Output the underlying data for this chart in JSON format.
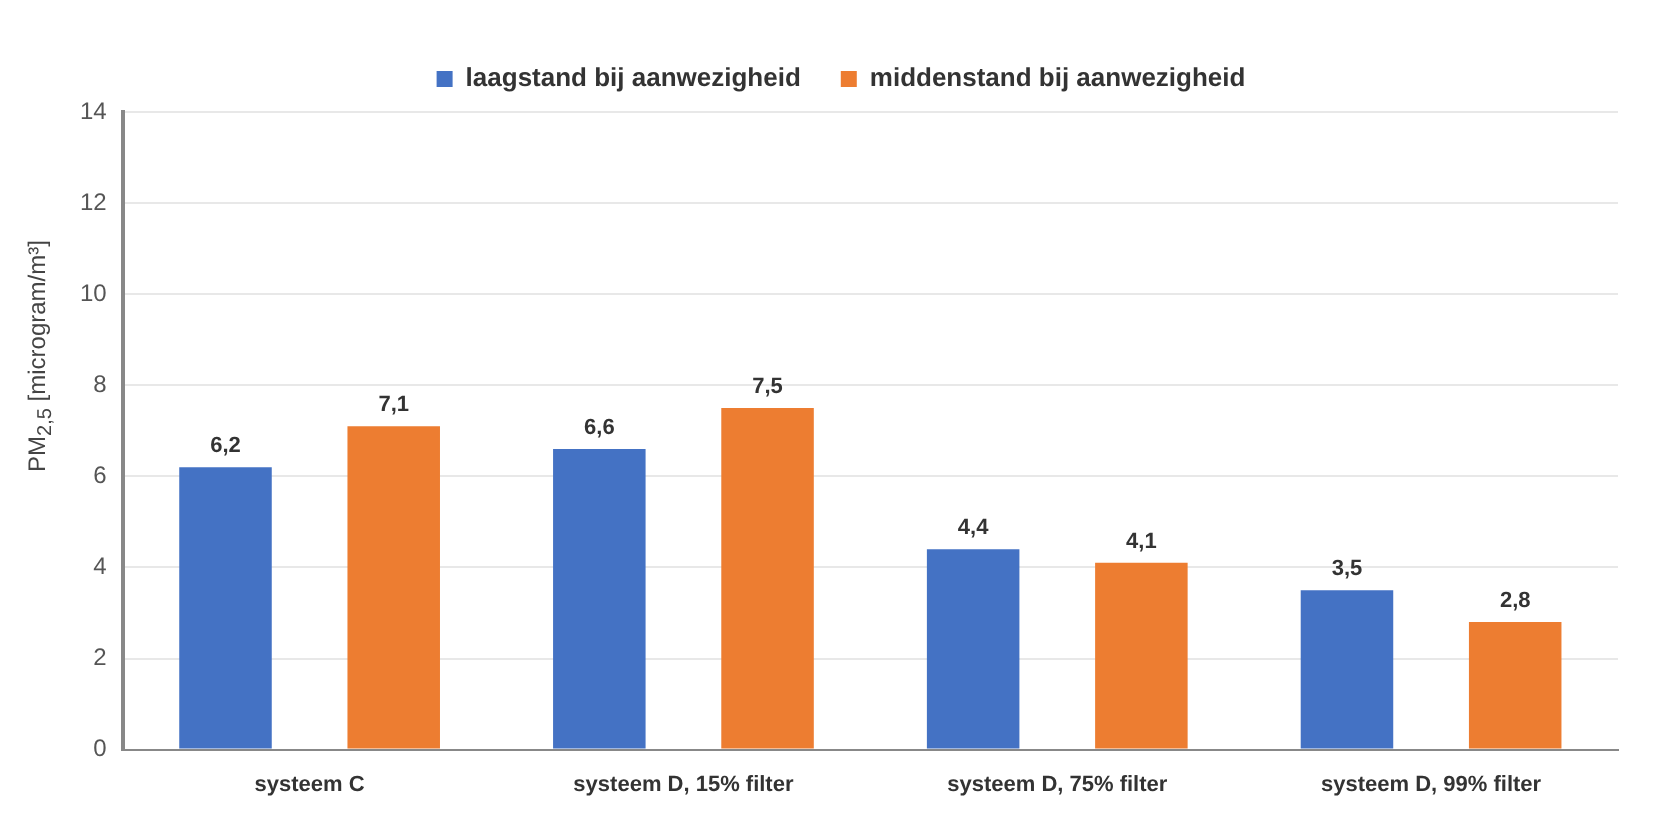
{
  "chart_data": {
    "type": "bar",
    "ylabel": "PM$_{2,5}$ [microgram/m³]",
    "categories": [
      "systeem C",
      "systeem D, 15% filter",
      "systeem D, 75% filter",
      "systeem D, 99% filter"
    ],
    "series": [
      {
        "name": "laagstand bij aanwezigheid",
        "color": "#4472c4",
        "values": [
          6.2,
          6.6,
          4.4,
          3.5
        ],
        "value_labels": [
          "6,2",
          "6,6",
          "4,4",
          "3,5"
        ]
      },
      {
        "name": "middenstand bij aanwezigheid",
        "color": "#ed7d31",
        "values": [
          7.1,
          7.5,
          4.1,
          2.8
        ],
        "value_labels": [
          "7,1",
          "7,5",
          "4,1",
          "2,8"
        ]
      }
    ],
    "ylim": [
      0,
      14
    ],
    "yticks": [
      0,
      2,
      4,
      6,
      8,
      10,
      12,
      14
    ],
    "grid": "y",
    "legend": "top"
  }
}
